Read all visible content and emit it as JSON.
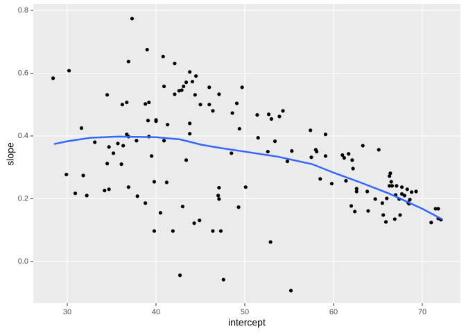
{
  "chart_data": {
    "type": "scatter",
    "x_label": "intercept",
    "y_label": "slope",
    "xlim": [
      26.17,
      74.3
    ],
    "ylim": [
      -0.133,
      0.82
    ],
    "xticks": [
      30,
      40,
      50,
      60,
      70
    ],
    "yticks": [
      {
        "value": 0,
        "label": "0.0"
      },
      0.2,
      0.4,
      0.6,
      0.8
    ],
    "grid": true,
    "color": "#000000",
    "x": [
      28.4,
      30.2,
      29.9,
      30.9,
      31.6,
      31.8,
      32.2,
      33.1,
      34.2,
      34.5,
      34.5,
      34.7,
      34.7,
      35.2,
      35.7,
      36.1,
      36.2,
      36.3,
      36.7,
      36.9,
      36.7,
      36.9,
      36.9,
      37.3,
      37.8,
      37.9,
      38.8,
      38.8,
      39.0,
      39.1,
      39.2,
      39.2,
      39.5,
      39.8,
      39.8,
      40.0,
      40.0,
      40.5,
      40.8,
      40.9,
      40.9,
      41.2,
      41.3,
      41.9,
      42.1,
      42.1,
      42.6,
      42.7,
      42.9,
      43.1,
      43.0,
      43.4,
      43.4,
      43.8,
      43.8,
      43.8,
      44.1,
      44.3,
      44.4,
      44.5,
      44.9,
      45.0,
      46.0,
      46.0,
      46.4,
      46.4,
      47.0,
      47.1,
      47.1,
      47.1,
      47.3,
      47.6,
      48.5,
      48.6,
      49.1,
      49.4,
      49.3,
      49.7,
      50.1,
      51.4,
      51.5,
      52.6,
      52.7,
      52.9,
      53.0,
      53.4,
      53.9,
      54.3,
      54.8,
      55.2,
      55.3,
      57.4,
      57.5,
      58.0,
      58.1,
      58.5,
      59.1,
      59.1,
      59.8,
      61.0,
      61.2,
      61.4,
      61.7,
      62.0,
      62.1,
      62.2,
      62.4,
      62.6,
      62.6,
      63.3,
      63.8,
      63.9,
      64.7,
      65.1,
      65.5,
      65.6,
      65.9,
      66.0,
      66.3,
      66.4,
      66.3,
      66.5,
      66.6,
      66.9,
      67.0,
      67.1,
      67.4,
      67.5,
      67.7,
      67.7,
      68.0,
      68.3,
      68.4,
      68.5,
      68.6,
      68.8,
      69.3,
      71.0,
      71.5,
      71.8,
      71.8,
      72.1
    ],
    "y": [
      0.584,
      0.608,
      0.277,
      0.217,
      0.425,
      0.274,
      0.21,
      0.38,
      0.226,
      0.531,
      0.312,
      0.365,
      0.23,
      0.345,
      0.376,
      0.31,
      0.5,
      0.369,
      0.507,
      0.637,
      0.405,
      0.398,
      0.237,
      0.774,
      0.385,
      0.208,
      0.502,
      0.186,
      0.675,
      0.449,
      0.507,
      0.398,
      0.336,
      0.254,
      0.097,
      0.451,
      0.447,
      0.155,
      0.653,
      0.558,
      0.385,
      0.252,
      0.436,
      0.097,
      0.631,
      0.533,
      0.544,
      -0.044,
      0.546,
      0.558,
      0.175,
      0.571,
      0.323,
      0.604,
      0.407,
      0.44,
      0.573,
      0.122,
      0.531,
      0.591,
      0.131,
      0.5,
      0.555,
      0.5,
      0.48,
      0.097,
      0.21,
      0.199,
      0.235,
      0.533,
      0.097,
      -0.058,
      0.345,
      0.473,
      0.504,
      0.423,
      0.173,
      0.555,
      0.237,
      0.467,
      0.394,
      0.35,
      0.469,
      0.062,
      0.454,
      0.383,
      0.462,
      0.48,
      0.319,
      -0.093,
      0.352,
      0.418,
      0.332,
      0.356,
      0.35,
      0.263,
      0.405,
      0.336,
      0.248,
      0.339,
      0.33,
      0.257,
      0.343,
      0.177,
      0.323,
      0.296,
      0.159,
      0.232,
      0.223,
      0.369,
      0.223,
      0.161,
      0.199,
      0.356,
      0.186,
      0.148,
      0.126,
      0.201,
      0.241,
      0.281,
      0.272,
      0.254,
      0.241,
      0.135,
      0.212,
      0.241,
      0.199,
      0.148,
      0.237,
      0.215,
      0.21,
      0.23,
      0.188,
      0.184,
      0.197,
      0.221,
      0.223,
      0.124,
      0.168,
      0.168,
      0.137,
      0.133
    ],
    "smooth": {
      "color": "#3366ff",
      "x": [
        28.5,
        30,
        32.6,
        35.7,
        40,
        42.7,
        45.1,
        47.4,
        50,
        53.7,
        57.6,
        60,
        63,
        66.2,
        70,
        72.2
      ],
      "y": [
        0.374,
        0.383,
        0.394,
        0.398,
        0.396,
        0.389,
        0.372,
        0.361,
        0.35,
        0.334,
        0.31,
        0.283,
        0.252,
        0.217,
        0.168,
        0.135
      ]
    }
  }
}
